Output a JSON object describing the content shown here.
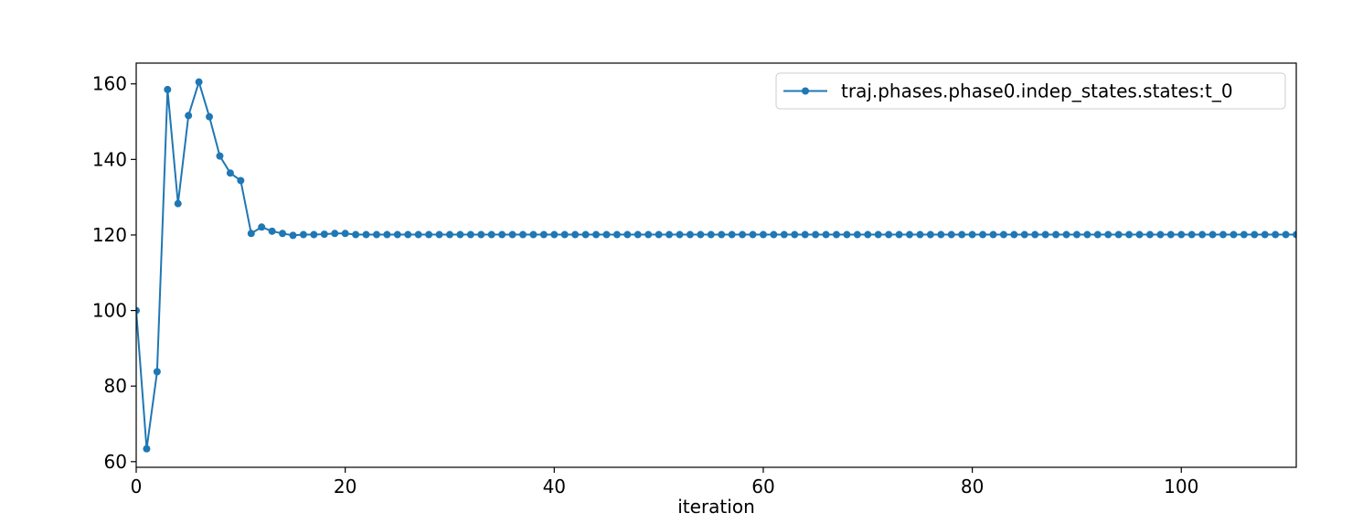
{
  "chart_data": {
    "type": "line",
    "title": "",
    "xlabel": "iteration",
    "ylabel": "",
    "xlim": [
      0,
      111
    ],
    "ylim": [
      58.5,
      165.5
    ],
    "xticks": [
      0,
      20,
      40,
      60,
      80,
      100
    ],
    "yticks": [
      60,
      80,
      100,
      120,
      140,
      160
    ],
    "grid": false,
    "legend": {
      "placement": "top-right"
    },
    "series": [
      {
        "name": "traj.phases.phase0.indep_states.states:t_0",
        "color": "#1f77b4",
        "marker": "circle",
        "x": [
          0,
          1,
          2,
          3,
          4,
          5,
          6,
          7,
          8,
          9,
          10,
          11,
          12,
          13,
          14,
          15,
          16,
          17,
          18,
          19,
          20,
          21,
          22,
          23,
          24,
          25,
          26,
          27,
          28,
          29,
          30,
          31,
          32,
          33,
          34,
          35,
          36,
          37,
          38,
          39,
          40,
          41,
          42,
          43,
          44,
          45,
          46,
          47,
          48,
          49,
          50,
          51,
          52,
          53,
          54,
          55,
          56,
          57,
          58,
          59,
          60,
          61,
          62,
          63,
          64,
          65,
          66,
          67,
          68,
          69,
          70,
          71,
          72,
          73,
          74,
          75,
          76,
          77,
          78,
          79,
          80,
          81,
          82,
          83,
          84,
          85,
          86,
          87,
          88,
          89,
          90,
          91,
          92,
          93,
          94,
          95,
          96,
          97,
          98,
          99,
          100,
          101,
          102,
          103,
          104,
          105,
          106,
          107,
          108,
          109,
          110,
          111
        ],
        "y": [
          100.0,
          63.4,
          83.8,
          158.5,
          128.3,
          151.6,
          160.5,
          151.3,
          140.9,
          136.4,
          134.4,
          120.4,
          122.1,
          121.0,
          120.4,
          119.9,
          120.1,
          120.1,
          120.2,
          120.4,
          120.4,
          120.1,
          120.1,
          120.1,
          120.1,
          120.1,
          120.1,
          120.1,
          120.1,
          120.1,
          120.1,
          120.1,
          120.1,
          120.1,
          120.1,
          120.1,
          120.1,
          120.1,
          120.1,
          120.1,
          120.1,
          120.1,
          120.1,
          120.1,
          120.1,
          120.1,
          120.1,
          120.1,
          120.1,
          120.1,
          120.1,
          120.1,
          120.1,
          120.1,
          120.1,
          120.1,
          120.1,
          120.1,
          120.1,
          120.1,
          120.1,
          120.1,
          120.1,
          120.1,
          120.1,
          120.1,
          120.1,
          120.1,
          120.1,
          120.1,
          120.1,
          120.1,
          120.1,
          120.1,
          120.1,
          120.1,
          120.1,
          120.1,
          120.1,
          120.1,
          120.1,
          120.1,
          120.1,
          120.1,
          120.1,
          120.1,
          120.1,
          120.1,
          120.1,
          120.1,
          120.1,
          120.1,
          120.1,
          120.1,
          120.1,
          120.1,
          120.1,
          120.1,
          120.1,
          120.1,
          120.1,
          120.1,
          120.1,
          120.1,
          120.1,
          120.1,
          120.1,
          120.1,
          120.1,
          120.1,
          120.1,
          120.1
        ]
      }
    ]
  }
}
